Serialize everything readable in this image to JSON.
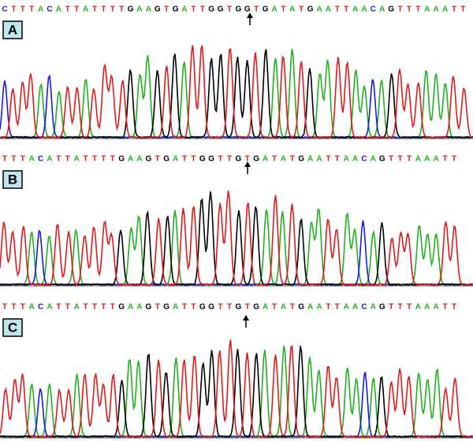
{
  "panels": [
    {
      "label": "A",
      "bases": [
        "C",
        "T",
        "T",
        "T",
        "A",
        "C",
        "A",
        "T",
        "T",
        "A",
        "T",
        "T",
        "T",
        "T",
        "G",
        "A",
        "A",
        "G",
        "T",
        "G",
        "A",
        "T",
        "T",
        "G",
        "G",
        "T",
        "G",
        "G",
        "T",
        "G",
        "A",
        "T",
        "A",
        "T",
        "G",
        "A",
        "A",
        "T",
        "T",
        "A",
        "A",
        "C",
        "A",
        "G",
        "T",
        "T",
        "T",
        "A",
        "A",
        "A",
        "T",
        "T"
      ]
    },
    {
      "label": "B",
      "bases": [
        "T",
        "T",
        "T",
        "A",
        "C",
        "A",
        "T",
        "T",
        "A",
        "T",
        "T",
        "T",
        "T",
        "G",
        "A",
        "A",
        "G",
        "T",
        "G",
        "A",
        "T",
        "T",
        "G",
        "G",
        "T",
        "T",
        "G",
        "T",
        "G",
        "A",
        "T",
        "A",
        "T",
        "G",
        "A",
        "A",
        "T",
        "T",
        "A",
        "A",
        "C",
        "A",
        "G",
        "T",
        "T",
        "T",
        "A",
        "A",
        "A",
        "T",
        "T"
      ]
    },
    {
      "label": "C",
      "bases": [
        "T",
        "T",
        "T",
        "A",
        "C",
        "A",
        "T",
        "T",
        "A",
        "T",
        "T",
        "T",
        "T",
        "G",
        "A",
        "A",
        "G",
        "T",
        "G",
        "A",
        "T",
        "T",
        "G",
        "G",
        "T",
        "T",
        "G",
        "T",
        "G",
        "A",
        "T",
        "A",
        "T",
        "G",
        "A",
        "A",
        "T",
        "T",
        "A",
        "A",
        "C",
        "A",
        "G",
        "T",
        "T",
        "T",
        "A",
        "A",
        "A",
        "T",
        "T"
      ]
    }
  ]
}
